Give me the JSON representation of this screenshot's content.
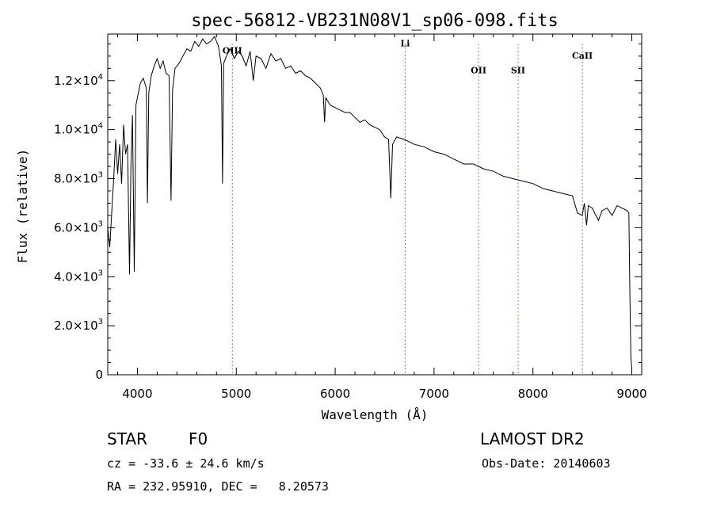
{
  "chart_data": {
    "type": "line",
    "title": "spec-56812-VB231N08V1_sp06-098.fits",
    "xlabel": "Wavelength (Å)",
    "ylabel": "Flux (relative)",
    "xlim": [
      3700,
      9100
    ],
    "ylim": [
      0,
      13900
    ],
    "x_ticks": [
      4000,
      5000,
      6000,
      7000,
      8000,
      9000
    ],
    "y_ticks": [
      {
        "value": 0,
        "mantissa": "0",
        "exp": ""
      },
      {
        "value": 2000,
        "mantissa": "2.0×10",
        "exp": "3"
      },
      {
        "value": 4000,
        "mantissa": "4.0×10",
        "exp": "3"
      },
      {
        "value": 6000,
        "mantissa": "6.0×10",
        "exp": "3"
      },
      {
        "value": 8000,
        "mantissa": "8.0×10",
        "exp": "3"
      },
      {
        "value": 10000,
        "mantissa": "1.0×10",
        "exp": "4"
      },
      {
        "value": 12000,
        "mantissa": "1.2×10",
        "exp": "4"
      }
    ],
    "line_markers": [
      {
        "label": "OIII",
        "x": 4960,
        "label_y": 13100
      },
      {
        "label": "Li",
        "x": 6708,
        "label_y": 13400
      },
      {
        "label": "OII",
        "x": 7450,
        "label_y": 12300
      },
      {
        "label": "SII",
        "x": 7850,
        "label_y": 12300
      },
      {
        "label": "CaII",
        "x": 8500,
        "label_y": 12900
      }
    ],
    "marker_color": "#d03030",
    "series": [
      {
        "x": [
          3700,
          3720,
          3740,
          3760,
          3780,
          3800,
          3820,
          3840,
          3860,
          3880,
          3900,
          3920,
          3935,
          3950,
          3968,
          3985,
          4000,
          4030,
          4060,
          4090,
          4101,
          4115,
          4140,
          4170,
          4200,
          4230,
          4260,
          4290,
          4320,
          4340,
          4355,
          4380,
          4420,
          4460,
          4500,
          4540,
          4580,
          4620,
          4660,
          4700,
          4740,
          4780,
          4820,
          4850,
          4861,
          4872,
          4900,
          4940,
          4980,
          5020,
          5060,
          5100,
          5140,
          5172,
          5200,
          5250,
          5300,
          5350,
          5400,
          5450,
          5500,
          5550,
          5600,
          5650,
          5700,
          5750,
          5800,
          5850,
          5880,
          5893,
          5905,
          5950,
          6000,
          6050,
          6100,
          6150,
          6200,
          6250,
          6300,
          6350,
          6400,
          6450,
          6500,
          6540,
          6563,
          6580,
          6620,
          6700,
          6800,
          6900,
          7000,
          7100,
          7200,
          7300,
          7400,
          7500,
          7600,
          7700,
          7800,
          7900,
          8000,
          8100,
          8200,
          8300,
          8400,
          8450,
          8498,
          8520,
          8542,
          8560,
          8600,
          8662,
          8700,
          8750,
          8800,
          8850,
          8900,
          8950,
          8970,
          8980,
          8990,
          9000
        ],
        "y": [
          6000,
          5200,
          6600,
          8000,
          9600,
          8200,
          9400,
          7800,
          10200,
          9000,
          9400,
          4100,
          8600,
          10600,
          4200,
          11000,
          11300,
          11900,
          12100,
          11700,
          7000,
          11500,
          12200,
          12600,
          12900,
          12500,
          12800,
          12300,
          12200,
          7100,
          11600,
          12500,
          12700,
          13000,
          13300,
          13200,
          13600,
          13400,
          13700,
          13500,
          13600,
          13800,
          13400,
          12600,
          7800,
          12700,
          13000,
          13300,
          12900,
          13200,
          13000,
          12600,
          13200,
          12000,
          13000,
          12900,
          12500,
          13100,
          12800,
          12900,
          12500,
          12600,
          12300,
          12400,
          12200,
          12100,
          11900,
          11700,
          11400,
          10300,
          11300,
          11000,
          10900,
          10800,
          10700,
          10700,
          10500,
          10300,
          10400,
          10200,
          10100,
          10000,
          9700,
          9600,
          7200,
          9400,
          9700,
          9600,
          9400,
          9300,
          9100,
          9000,
          8800,
          8600,
          8600,
          8400,
          8300,
          8100,
          8000,
          7900,
          7800,
          7600,
          7500,
          7400,
          7300,
          6600,
          6500,
          7000,
          6100,
          6900,
          6800,
          6300,
          6700,
          6800,
          6500,
          6900,
          6800,
          6700,
          6600,
          3500,
          800,
          200
        ]
      }
    ]
  },
  "info": {
    "object_type": "STAR",
    "subclass": "F0",
    "survey": "LAMOST DR2",
    "cz": "cz = -33.6 ± 24.6 km/s",
    "obs_date": "Obs-Date: 20140603",
    "coords": "RA = 232.95910, DEC =   8.20573"
  }
}
